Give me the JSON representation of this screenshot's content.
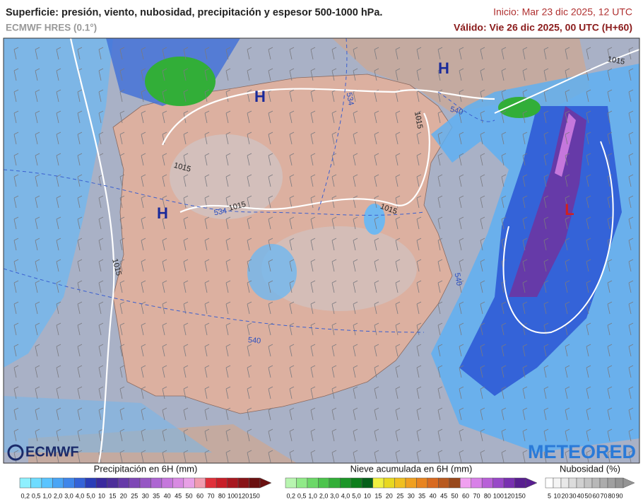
{
  "header": {
    "title": "Superficie: presión, viento, nubosidad, precipitación y espesor 500-1000 hPa.",
    "model": "ECMWF HRES (0.1°)",
    "init": "Inicio: Mar 23 dic 2025, 12 UTC",
    "valid": "Válido: Vie 26 dic 2025, 00 UTC (H+60)"
  },
  "map": {
    "centers": [
      "H",
      "H",
      "H",
      "L"
    ],
    "isobar_labels": [
      "1015",
      "1015",
      "1015",
      "1015",
      "1015",
      "1015"
    ],
    "thickness_labels": [
      "534",
      "534",
      "540",
      "540",
      "540"
    ],
    "logos": [
      "ECMWF",
      "METEORED"
    ]
  },
  "legends": [
    {
      "title": "Precipitación en 6H (mm)",
      "labels": [
        "0,2",
        "0,5",
        "1,0",
        "2,0",
        "3,0",
        "4,0",
        "5,0",
        "10",
        "15",
        "20",
        "25",
        "30",
        "35",
        "40",
        "45",
        "50",
        "60",
        "70",
        "80",
        "100",
        "120",
        "150"
      ],
      "colors": [
        "#8ef0ff",
        "#6fdcff",
        "#5ac4ff",
        "#4aa5f5",
        "#3f86ea",
        "#3463d8",
        "#2a3db8",
        "#3a2a9e",
        "#4d2f9a",
        "#663aa8",
        "#7e48b6",
        "#9656c4",
        "#ad65d2",
        "#c577dc",
        "#d88ae2",
        "#e8a0e6",
        "#f09cb0",
        "#e0303a",
        "#c81e28",
        "#a81820",
        "#881418",
        "#6a1010"
      ]
    },
    {
      "title": "Nieve acumulada en 6H (mm)",
      "labels": [
        "0,2",
        "0,5",
        "1,0",
        "2,0",
        "3,0",
        "4,0",
        "5,0",
        "10",
        "15",
        "20",
        "25",
        "30",
        "35",
        "40",
        "45",
        "50",
        "60",
        "70",
        "80",
        "100",
        "120",
        "150"
      ],
      "colors": [
        "#b8f5b0",
        "#90ea88",
        "#6cd868",
        "#4cc44c",
        "#32ae38",
        "#1c9628",
        "#0e7e1c",
        "#06601a",
        "#f0f040",
        "#e8d820",
        "#f0c020",
        "#f0a020",
        "#e88420",
        "#d86a20",
        "#b85a20",
        "#98481c",
        "#f0a0f0",
        "#d880e8",
        "#b860d8",
        "#9848c8",
        "#7830b0",
        "#581e90"
      ]
    },
    {
      "title": "Nubosidad (%)",
      "labels": [
        "5",
        "10",
        "20",
        "30",
        "40",
        "50",
        "60",
        "70",
        "80",
        "90"
      ],
      "colors": [
        "#ffffff",
        "#f4f4f4",
        "#e8e8e8",
        "#dcdcdc",
        "#d0d0d0",
        "#c4c4c4",
        "#b8b8b8",
        "#acacac",
        "#a0a0a0",
        "#949494"
      ]
    }
  ]
}
